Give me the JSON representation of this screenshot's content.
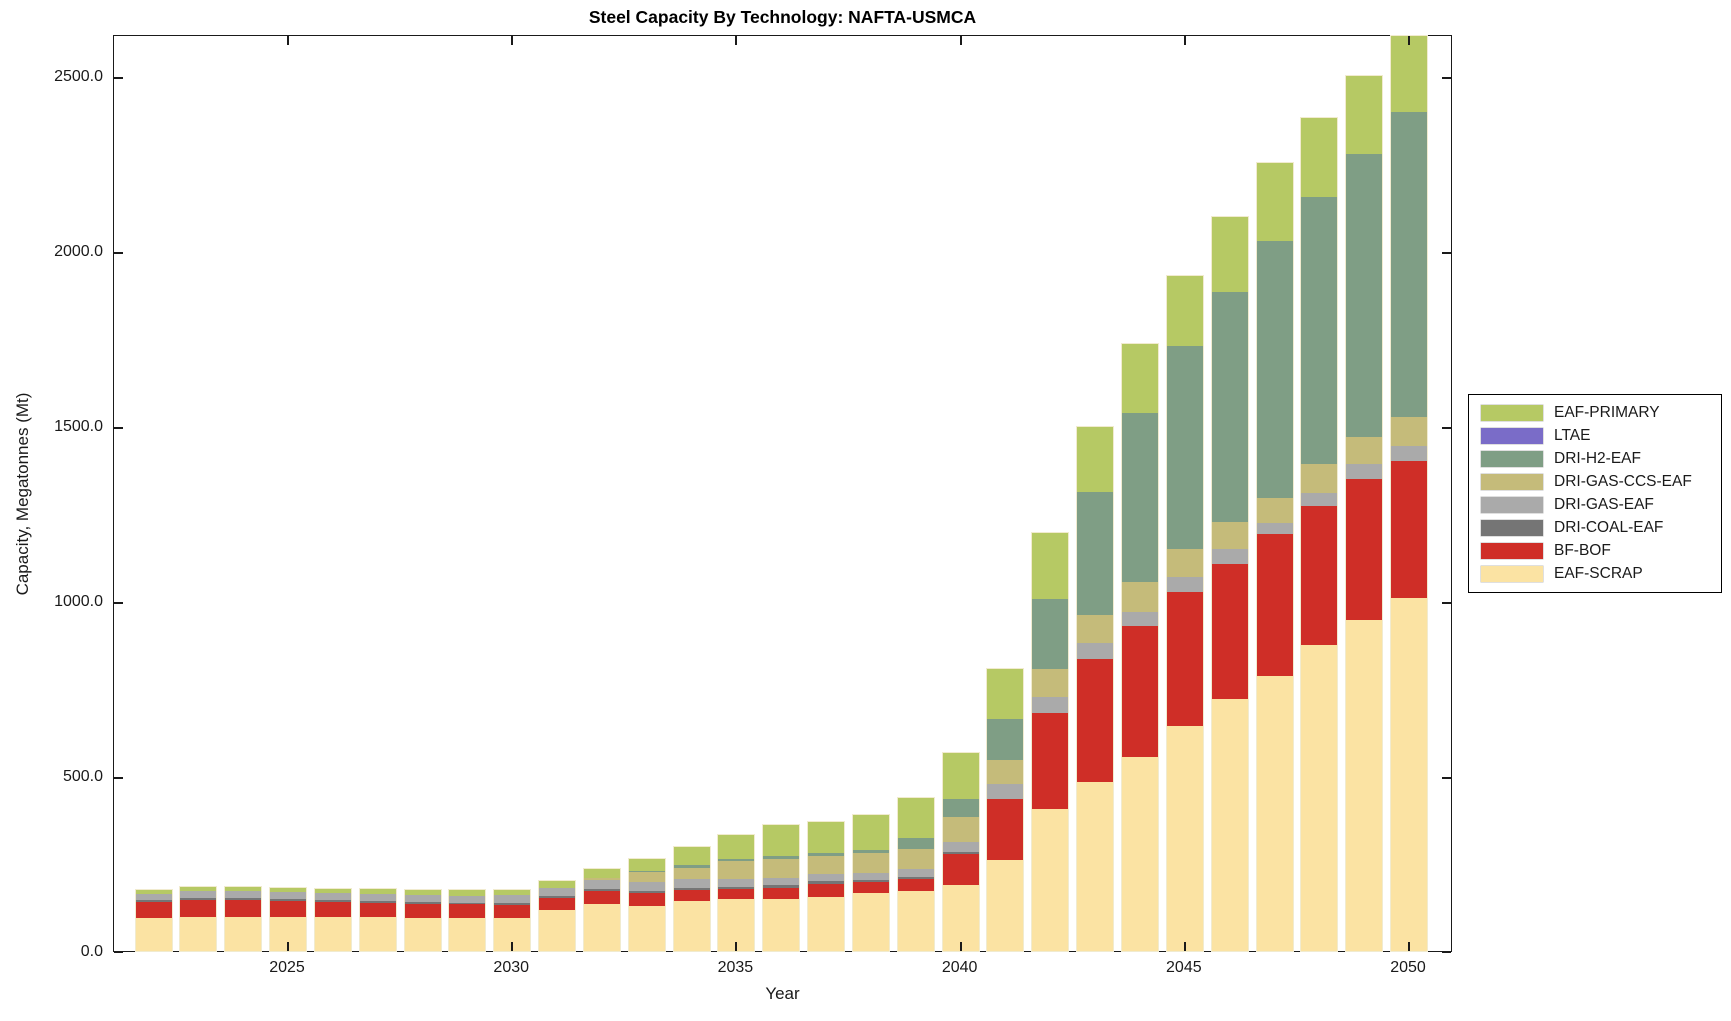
{
  "chart_data": {
    "type": "bar",
    "stacked": true,
    "title": "Steel Capacity By Technology: NAFTA-USMCA",
    "xlabel": "Year",
    "ylabel": "Capacity, Megatonnes (Mt)",
    "grid": false,
    "ylim": [
      0,
      2620
    ],
    "x": [
      2022,
      2023,
      2024,
      2025,
      2026,
      2027,
      2028,
      2029,
      2030,
      2031,
      2032,
      2033,
      2034,
      2035,
      2036,
      2037,
      2038,
      2039,
      2040,
      2041,
      2042,
      2043,
      2044,
      2045,
      2046,
      2047,
      2048,
      2049,
      2050
    ],
    "xtick_values": [
      2025,
      2030,
      2035,
      2040,
      2045,
      2050
    ],
    "xtick_labels": [
      "2025",
      "2030",
      "2035",
      "2040",
      "2045",
      "2050"
    ],
    "ytick_values": [
      0,
      500,
      1000,
      1500,
      2000,
      2500
    ],
    "ytick_labels": [
      "0.0",
      "500.0",
      "1000.0",
      "1500.0",
      "2000.0",
      "2500.0"
    ],
    "legend_position": "right-outside",
    "legend_order_top_to_bottom": [
      "EAF-PRIMARY",
      "LTAE",
      "DRI-H2-EAF",
      "DRI-GAS-CCS-EAF",
      "DRI-GAS-EAF",
      "DRI-COAL-EAF",
      "BF-BOF",
      "EAF-SCRAP"
    ],
    "series": [
      {
        "name": "EAF-SCRAP",
        "color": "#FBE3A3",
        "values": [
          94,
          97,
          98,
          98,
          97,
          96,
          95,
          94,
          94,
          117,
          134,
          130,
          144,
          149,
          150,
          155,
          165,
          172,
          189,
          260,
          405,
          484,
          555,
          642,
          720,
          786,
          874,
          947,
          1008
        ]
      },
      {
        "name": "BF-BOF",
        "color": "#CF2E27",
        "values": [
          47,
          49,
          48,
          45,
          44,
          42,
          40,
          39,
          38,
          34,
          37,
          36,
          30,
          27,
          31,
          36,
          31,
          33,
          88,
          174,
          274,
          350,
          373,
          383,
          386,
          405,
          398,
          402,
          393
        ]
      },
      {
        "name": "DRI-COAL-EAF",
        "color": "#757575",
        "values": [
          5,
          5,
          5,
          5,
          5,
          5,
          5,
          5,
          6,
          6,
          6,
          6,
          7,
          7,
          7,
          8,
          7,
          7,
          6,
          0,
          0,
          0,
          0,
          0,
          0,
          0,
          0,
          0,
          0
        ]
      },
      {
        "name": "DRI-GAS-EAF",
        "color": "#AAAAAA",
        "values": [
          17,
          20,
          20,
          20,
          20,
          20,
          20,
          20,
          21,
          23,
          26,
          25,
          24,
          22,
          21,
          21,
          21,
          22,
          28,
          42,
          47,
          47,
          41,
          43,
          43,
          33,
          38,
          43,
          43
        ]
      },
      {
        "name": "DRI-GAS-CCS-EAF",
        "color": "#C5BB7A",
        "values": [
          0,
          0,
          0,
          0,
          0,
          0,
          0,
          0,
          0,
          0,
          6,
          28,
          33,
          52,
          55,
          52,
          55,
          57,
          73,
          70,
          79,
          79,
          85,
          81,
          76,
          71,
          81,
          76,
          81
        ]
      },
      {
        "name": "DRI-H2-EAF",
        "color": "#7F9E85",
        "values": [
          0,
          0,
          0,
          0,
          0,
          0,
          0,
          0,
          0,
          0,
          0,
          5,
          7,
          5,
          7,
          8,
          11,
          33,
          51,
          117,
          200,
          351,
          484,
          581,
          657,
          733,
          764,
          809,
          871
        ]
      },
      {
        "name": "LTAE",
        "color": "#7A6CC8",
        "values": [
          0,
          0,
          0,
          0,
          0,
          0,
          0,
          0,
          0,
          0,
          0,
          0,
          0,
          0,
          0,
          0,
          0,
          0,
          0,
          0,
          0,
          0,
          0,
          0,
          0,
          0,
          0,
          0,
          0
        ]
      },
      {
        "name": "EAF-PRIMARY",
        "color": "#B6C964",
        "values": [
          11,
          11,
          12,
          12,
          12,
          13,
          14,
          15,
          15,
          20,
          26,
          33,
          53,
          69,
          88,
          88,
          100,
          114,
          132,
          142,
          189,
          187,
          195,
          200,
          216,
          224,
          224,
          222,
          217
        ]
      }
    ]
  }
}
